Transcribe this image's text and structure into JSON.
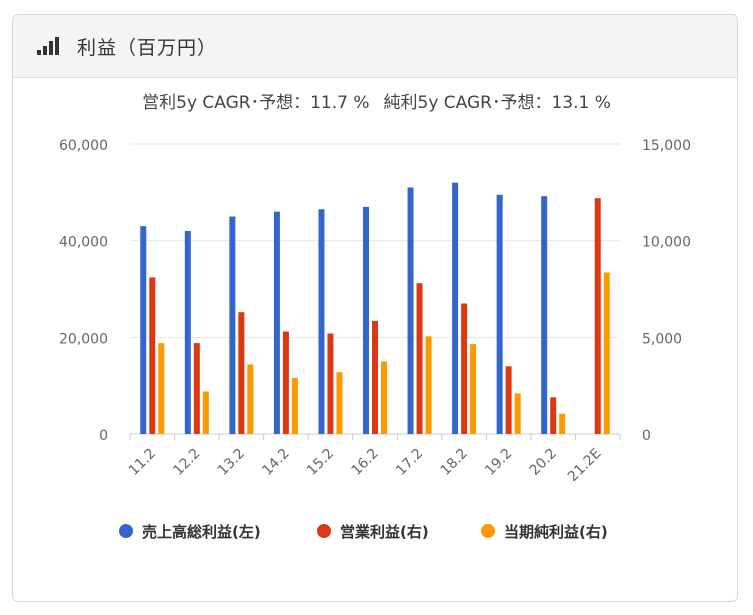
{
  "header": {
    "title": "利益（百万円）",
    "icon": "signal-bars-icon"
  },
  "subtitle": {
    "operating": "営利5y CAGR･予想：11.7 %",
    "net": "純利5y CAGR･予想：13.1 %"
  },
  "colors": {
    "gross": "#3366cc",
    "operating": "#dc3912",
    "net": "#ff9900",
    "axis": "#cccccc",
    "grid": "#e6e6e6",
    "tick_text": "#666666"
  },
  "chart_data": {
    "type": "bar",
    "title": "",
    "categories": [
      "11.2",
      "12.2",
      "13.2",
      "14.2",
      "15.2",
      "16.2",
      "17.2",
      "18.2",
      "19.2",
      "20.2",
      "21.2E"
    ],
    "series": [
      {
        "name": "売上高総利益(左)",
        "axis": "left",
        "values": [
          43000,
          42000,
          45000,
          46000,
          46500,
          47000,
          51000,
          52000,
          49500,
          49200,
          null
        ]
      },
      {
        "name": "営業利益(右)",
        "axis": "right",
        "values": [
          8100,
          4700,
          6300,
          5300,
          5200,
          5850,
          7800,
          6750,
          3500,
          1900,
          12200
        ]
      },
      {
        "name": "当期純利益(右)",
        "axis": "right",
        "values": [
          4700,
          2200,
          3600,
          2900,
          3200,
          3750,
          5050,
          4650,
          2100,
          1050,
          8350
        ]
      }
    ],
    "left_axis": {
      "min": 0,
      "max": 60000,
      "ticks": [
        "0",
        "20,000",
        "40,000",
        "60,000"
      ],
      "tick_values": [
        0,
        20000,
        40000,
        60000
      ]
    },
    "right_axis": {
      "min": 0,
      "max": 15000,
      "ticks": [
        "0",
        "5,000",
        "10,000",
        "15,000"
      ],
      "tick_values": [
        0,
        5000,
        10000,
        15000
      ]
    },
    "grid": true,
    "legend_position": "bottom"
  }
}
